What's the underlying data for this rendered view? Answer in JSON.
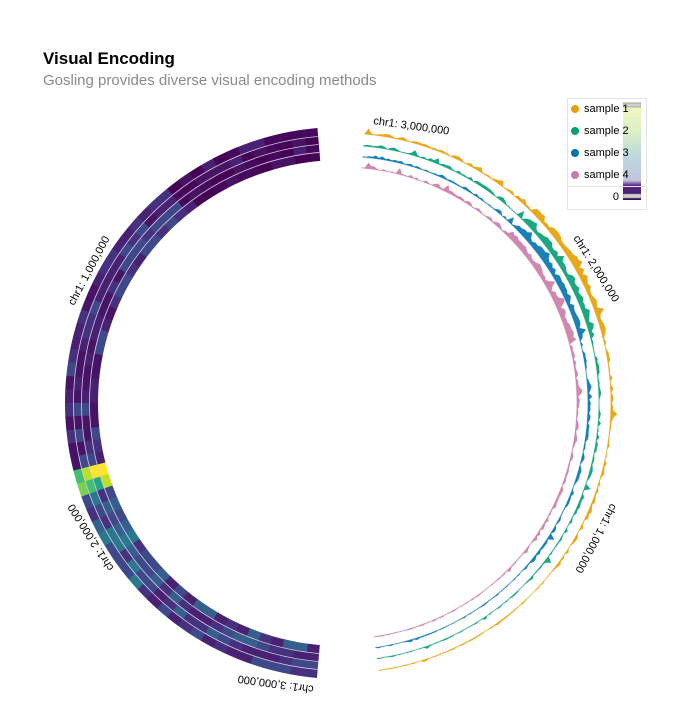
{
  "header": {
    "title": "Visual Encoding",
    "subtitle": "Gosling provides diverse visual encoding methods"
  },
  "legend": {
    "items": [
      {
        "label": "sample 1",
        "color": "#E79F00"
      },
      {
        "label": "sample 2",
        "color": "#029F73"
      },
      {
        "label": "sample 3",
        "color": "#0072B2"
      },
      {
        "label": "sample 4",
        "color": "#CB7AA7"
      }
    ],
    "colorbar_min_label": "0",
    "colorbar_colors": [
      "#fde725",
      "#e8f2b4",
      "#bfdbd8",
      "#b8c9df",
      "#482878",
      "#3b1a5e"
    ]
  },
  "axis_labels": {
    "right": [
      "chr1: 3,000,000",
      "chr1: 2,000,000",
      "chr1: 1,000,000"
    ],
    "left": [
      "chr1: 1,000,000",
      "chr1: 2,000,000",
      "chr1: 3,000,000"
    ]
  },
  "chart_data": [
    {
      "type": "area",
      "layout": "circular",
      "title": "Visual Encoding",
      "subtitle": "Gosling provides diverse visual encoding methods",
      "position": "right half of circle",
      "tick_labels": [
        "chr1: 3,000,000",
        "chr1: 2,000,000",
        "chr1: 1,000,000"
      ],
      "series": [
        {
          "name": "sample 1",
          "color": "#E79F00"
        },
        {
          "name": "sample 2",
          "color": "#029F73"
        },
        {
          "name": "sample 3",
          "color": "#0072B2"
        },
        {
          "name": "sample 4",
          "color": "#CB7AA7"
        }
      ],
      "legend_position": "top-right"
    },
    {
      "type": "heatmap",
      "layout": "circular",
      "position": "left half of circle",
      "rows": [
        "sample 1",
        "sample 2",
        "sample 3",
        "sample 4"
      ],
      "tick_labels": [
        "chr1: 1,000,000",
        "chr1: 2,000,000",
        "chr1: 3,000,000"
      ],
      "colormap": "viridis",
      "color_range_label_min": "0"
    }
  ]
}
